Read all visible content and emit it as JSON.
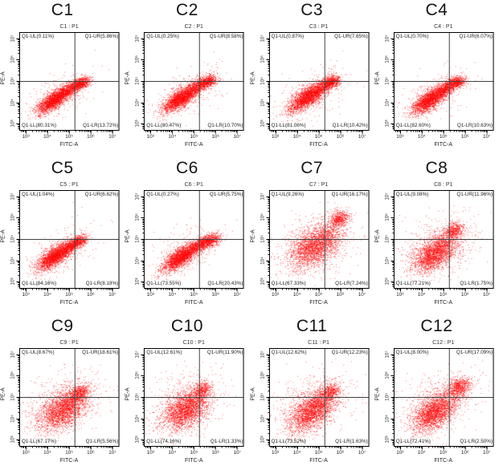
{
  "figure": {
    "description": "Flow cytometry dot plots, 12 samples C1-C12, quadrant gating Q1 on FITC-A vs PE-A",
    "background": "#ffffff"
  },
  "chart_data": {
    "type": "scatter",
    "layout": {
      "rows": 3,
      "cols": 4,
      "point_color": "#ff0000",
      "axis_color": "#000000",
      "quadrant_line_color": "#404040",
      "quadrant_x_frac": 0.555,
      "quadrant_y_frac_from_top": 0.5,
      "grid": false
    },
    "x_axis": {
      "label": "FITC-A",
      "scale": "log",
      "range_log10": [
        2.7,
        7.3
      ],
      "tick_exponents": [
        3,
        4,
        5,
        6,
        7
      ],
      "tick_labels": [
        "10³",
        "10⁴",
        "10⁵",
        "10⁶",
        "10⁷"
      ]
    },
    "y_axis": {
      "label": "PE-A",
      "scale": "log",
      "range_log10": [
        2.7,
        7.3
      ],
      "tick_exponents": [
        3,
        4,
        5,
        6,
        7
      ],
      "tick_labels": [
        "10³",
        "10⁴",
        "10⁵",
        "10⁶",
        "10⁷"
      ]
    },
    "panels": [
      {
        "panel_label": "C1",
        "plot_title": "C1 : P1",
        "quad_labels": {
          "ul": "Q1-UL(0.11%)",
          "ur": "Q1-UR(5.86%)",
          "ll": "Q1-LL(80.31%)",
          "lr": "Q1-LR(13.72%)"
        },
        "percentages": {
          "ul": 0.11,
          "ur": 5.86,
          "ll": 80.31,
          "lr": 13.72
        },
        "clusters": [
          [
            0.36,
            0.31,
            0.105,
            0.038,
            36,
            2400
          ],
          [
            0.52,
            0.42,
            0.06,
            0.03,
            34,
            520
          ],
          [
            0.625,
            0.475,
            0.05,
            0.028,
            22,
            680
          ],
          [
            0.42,
            0.36,
            0.2,
            0.1,
            34,
            230
          ]
        ]
      },
      {
        "panel_label": "C2",
        "plot_title": "C2 : P1",
        "quad_labels": {
          "ul": "Q1-UL(0.25%)",
          "ur": "Q1-UR(8.58%)",
          "ll": "Q1-LL(80.47%)",
          "lr": "Q1-LR(10.70%)"
        },
        "percentages": {
          "ul": 0.25,
          "ur": 8.58,
          "ll": 80.47,
          "lr": 10.7
        },
        "clusters": [
          [
            0.37,
            0.32,
            0.105,
            0.04,
            36,
            2400
          ],
          [
            0.53,
            0.43,
            0.06,
            0.03,
            34,
            500
          ],
          [
            0.64,
            0.49,
            0.052,
            0.03,
            22,
            700
          ],
          [
            0.43,
            0.37,
            0.2,
            0.1,
            34,
            240
          ]
        ]
      },
      {
        "panel_label": "C3",
        "plot_title": "C3 : P1",
        "quad_labels": {
          "ul": "Q1-UL(0.87%)",
          "ur": "Q1-UR(7.65%)",
          "ll": "Q1-LL(81.06%)",
          "lr": "Q1-LR(10.42%)"
        },
        "percentages": {
          "ul": 0.87,
          "ur": 7.65,
          "ll": 81.06,
          "lr": 10.42
        },
        "clusters": [
          [
            0.38,
            0.33,
            0.11,
            0.045,
            36,
            2300
          ],
          [
            0.53,
            0.43,
            0.065,
            0.032,
            34,
            520
          ],
          [
            0.635,
            0.49,
            0.05,
            0.03,
            24,
            640
          ],
          [
            0.44,
            0.38,
            0.21,
            0.11,
            34,
            270
          ]
        ]
      },
      {
        "panel_label": "C4",
        "plot_title": "C4 : P1",
        "quad_labels": {
          "ul": "Q1-UL(0.70%)",
          "ur": "Q1-UR(6.07%)",
          "ll": "Q1-LL(82.60%)",
          "lr": "Q1-LR(10.63%)"
        },
        "percentages": {
          "ul": 0.7,
          "ur": 6.07,
          "ll": 82.6,
          "lr": 10.63
        },
        "clusters": [
          [
            0.37,
            0.31,
            0.11,
            0.042,
            36,
            2400
          ],
          [
            0.52,
            0.42,
            0.06,
            0.03,
            34,
            500
          ],
          [
            0.63,
            0.485,
            0.05,
            0.028,
            22,
            620
          ],
          [
            0.43,
            0.37,
            0.2,
            0.1,
            34,
            240
          ]
        ]
      },
      {
        "panel_label": "C5",
        "plot_title": "C5 : P1",
        "quad_labels": {
          "ul": "Q1-UL(1.04%)",
          "ur": "Q1-UR(6.62%)",
          "ll": "Q1-LL(84.16%)",
          "lr": "Q1-LR(8.18%)"
        },
        "percentages": {
          "ul": 1.04,
          "ur": 6.62,
          "ll": 84.16,
          "lr": 8.18
        },
        "clusters": [
          [
            0.36,
            0.32,
            0.105,
            0.042,
            36,
            2450
          ],
          [
            0.51,
            0.42,
            0.06,
            0.03,
            34,
            470
          ],
          [
            0.6,
            0.475,
            0.048,
            0.028,
            24,
            540
          ],
          [
            0.42,
            0.37,
            0.2,
            0.1,
            34,
            230
          ]
        ]
      },
      {
        "panel_label": "C6",
        "plot_title": "C6 : P1",
        "quad_labels": {
          "ul": "Q1-UL(0.27%)",
          "ur": "Q1-UR(5.75%)",
          "ll": "Q1-LL(73.55%)",
          "lr": "Q1-LR(20.43%)"
        },
        "percentages": {
          "ul": 0.27,
          "ur": 5.75,
          "ll": 73.55,
          "lr": 20.43
        },
        "clusters": [
          [
            0.37,
            0.31,
            0.105,
            0.042,
            36,
            2300
          ],
          [
            0.53,
            0.42,
            0.065,
            0.032,
            34,
            540
          ],
          [
            0.655,
            0.475,
            0.058,
            0.032,
            22,
            820
          ],
          [
            0.44,
            0.37,
            0.21,
            0.1,
            34,
            250
          ]
        ]
      },
      {
        "panel_label": "C7",
        "plot_title": "C7 : P1",
        "quad_labels": {
          "ul": "Q1-UL(9.26%)",
          "ur": "Q1-UR(16.17%)",
          "ll": "Q1-LL(67.33%)",
          "lr": "Q1-LR(7.24%)"
        },
        "percentages": {
          "ul": 9.26,
          "ur": 16.17,
          "ll": 67.33,
          "lr": 7.24
        },
        "clusters": [
          [
            0.44,
            0.4,
            0.135,
            0.085,
            32,
            2000
          ],
          [
            0.71,
            0.7,
            0.05,
            0.04,
            30,
            540
          ],
          [
            0.46,
            0.45,
            0.22,
            0.15,
            30,
            700
          ],
          [
            0.58,
            0.55,
            0.08,
            0.06,
            35,
            360
          ]
        ]
      },
      {
        "panel_label": "C8",
        "plot_title": "C8 : P1",
        "quad_labels": {
          "ul": "Q1-UL(9.08%)",
          "ur": "Q1-UR(11.96%)",
          "ll": "Q1-LL(77.21%)",
          "lr": "Q1-LR(1.75%)"
        },
        "percentages": {
          "ul": 9.08,
          "ur": 11.96,
          "ll": 77.21,
          "lr": 1.75
        },
        "clusters": [
          [
            0.41,
            0.34,
            0.12,
            0.07,
            33,
            2100
          ],
          [
            0.61,
            0.585,
            0.05,
            0.035,
            28,
            460
          ],
          [
            0.44,
            0.42,
            0.21,
            0.14,
            30,
            620
          ],
          [
            0.52,
            0.47,
            0.08,
            0.06,
            33,
            310
          ]
        ]
      },
      {
        "panel_label": "C9",
        "plot_title": "C9 : P1",
        "quad_labels": {
          "ul": "Q1-UL(8.67%)",
          "ur": "Q1-UR(18.61%)",
          "ll": "Q1-LL(67.17%)",
          "lr": "Q1-LR(5.56%)"
        },
        "percentages": {
          "ul": 8.67,
          "ur": 18.61,
          "ll": 67.17,
          "lr": 5.56
        },
        "clusters": [
          [
            0.43,
            0.35,
            0.13,
            0.08,
            33,
            2000
          ],
          [
            0.61,
            0.54,
            0.06,
            0.042,
            40,
            540
          ],
          [
            0.45,
            0.43,
            0.22,
            0.14,
            30,
            640
          ],
          [
            0.53,
            0.46,
            0.08,
            0.06,
            35,
            310
          ]
        ]
      },
      {
        "panel_label": "C10",
        "plot_title": "C10 : P1",
        "quad_labels": {
          "ul": "Q1-UL(12.61%)",
          "ur": "Q1-UR(11.90%)",
          "ll": "Q1-LL(74.16%)",
          "lr": "Q1-LR(1.33%)"
        },
        "percentages": {
          "ul": 12.61,
          "ur": 11.9,
          "ll": 74.16,
          "lr": 1.33
        },
        "clusters": [
          [
            0.41,
            0.35,
            0.12,
            0.08,
            35,
            2000
          ],
          [
            0.59,
            0.565,
            0.05,
            0.04,
            35,
            440
          ],
          [
            0.43,
            0.44,
            0.2,
            0.14,
            30,
            640
          ],
          [
            0.5,
            0.46,
            0.08,
            0.06,
            35,
            310
          ]
        ]
      },
      {
        "panel_label": "C11",
        "plot_title": "C11 : P1",
        "quad_labels": {
          "ul": "Q1-UL(12.62%)",
          "ur": "Q1-UR(12.23%)",
          "ll": "Q1-LL(73.52%)",
          "lr": "Q1-LR(1.63%)"
        },
        "percentages": {
          "ul": 12.62,
          "ur": 12.23,
          "ll": 73.52,
          "lr": 1.63
        },
        "clusters": [
          [
            0.42,
            0.34,
            0.13,
            0.075,
            38,
            2100
          ],
          [
            0.61,
            0.555,
            0.055,
            0.042,
            38,
            470
          ],
          [
            0.45,
            0.43,
            0.21,
            0.14,
            32,
            620
          ],
          [
            0.52,
            0.46,
            0.08,
            0.06,
            36,
            310
          ]
        ]
      },
      {
        "panel_label": "C12",
        "plot_title": "C12 : P1",
        "quad_labels": {
          "ul": "Q1-UL(8.00%)",
          "ur": "Q1-UR(17.09%)",
          "ll": "Q1-LL(72.41%)",
          "lr": "Q1-LR(2.50%)"
        },
        "percentages": {
          "ul": 8.0,
          "ur": 17.09,
          "ll": 72.41,
          "lr": 2.5
        },
        "clusters": [
          [
            0.4,
            0.33,
            0.12,
            0.07,
            35,
            2100
          ],
          [
            0.66,
            0.6,
            0.06,
            0.045,
            30,
            660
          ],
          [
            0.45,
            0.43,
            0.21,
            0.14,
            30,
            600
          ],
          [
            0.54,
            0.48,
            0.09,
            0.065,
            33,
            330
          ]
        ]
      }
    ]
  }
}
